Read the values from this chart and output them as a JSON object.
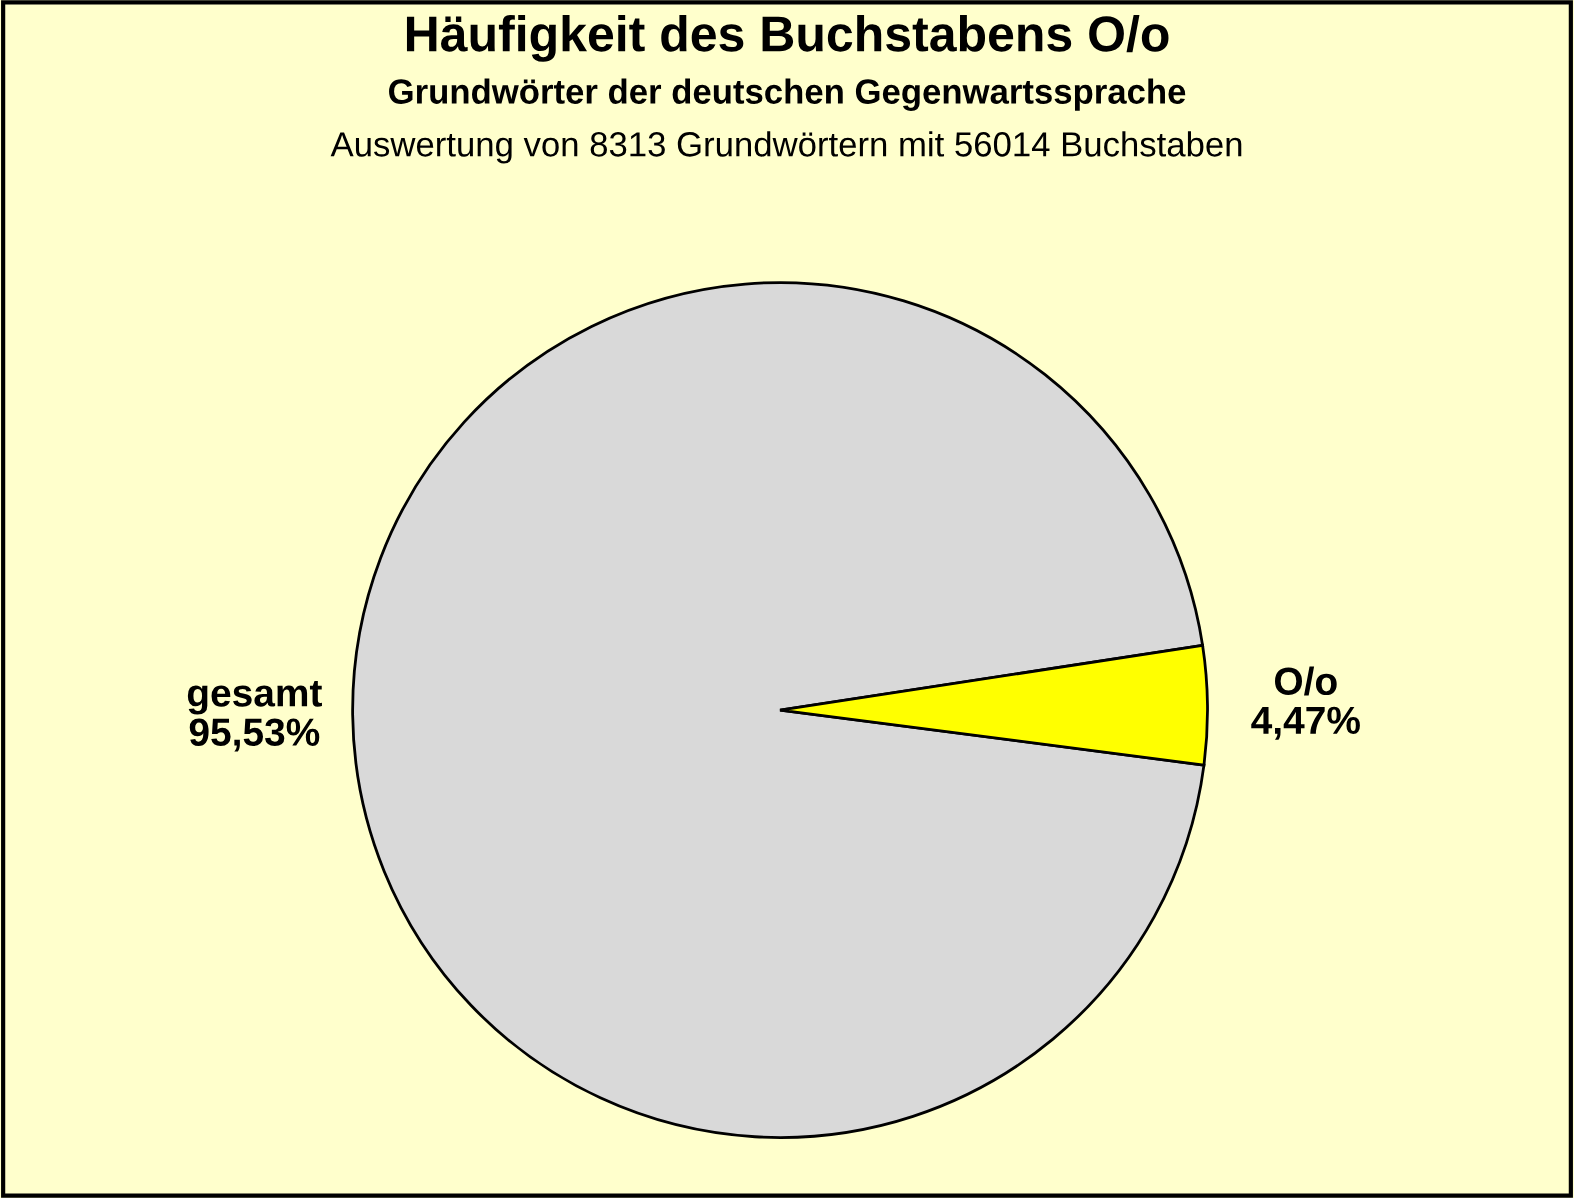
{
  "chart_data": {
    "type": "pie",
    "title": "Häufigkeit des Buchstabens O/o",
    "subtitle": "Grundwörter der deutschen Gegenwartssprache",
    "annotations": [
      "Auswertung von 8313 Grundwörtern mit 56014 Buchstaben"
    ],
    "categories": [
      "gesamt",
      "O/o"
    ],
    "values": [
      95.53,
      4.47
    ],
    "colors": [
      "#d9d9d9",
      "#ffff00"
    ],
    "value_labels": [
      "95,53%",
      "4,47%"
    ],
    "legend": false
  }
}
